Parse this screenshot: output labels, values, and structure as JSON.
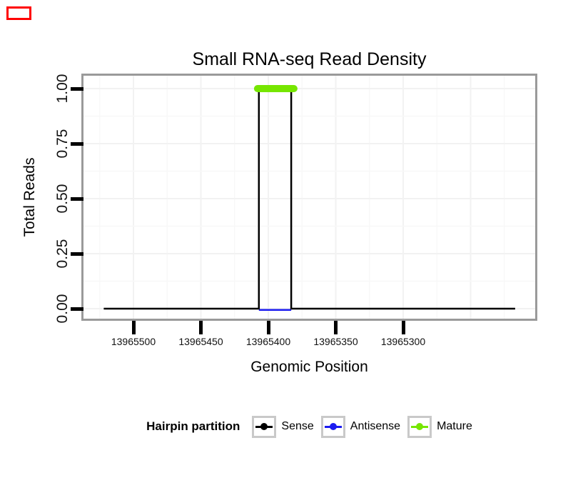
{
  "screen_marker": {
    "color": "#ff0000"
  },
  "title": "Small RNA-seq Read Density",
  "y_axis": {
    "label": "Total Reads",
    "tick_labels": [
      "1.00",
      "0.75",
      "0.50",
      "0.25",
      "0.00"
    ],
    "tick_values": [
      1.0,
      0.75,
      0.5,
      0.25,
      0.0
    ]
  },
  "x_axis": {
    "label": "Genomic Position",
    "tick_labels": [
      "13965500",
      "13965450",
      "13965400",
      "13965350",
      "13965300"
    ],
    "tick_values": [
      13965500,
      13965450,
      13965400,
      13965350,
      13965300
    ]
  },
  "legend": {
    "title": "Hairpin partition",
    "items": [
      {
        "label": "Sense",
        "color": "#000000"
      },
      {
        "label": "Antisense",
        "color": "#1c1cf0"
      },
      {
        "label": "Mature",
        "color": "#76e600"
      }
    ]
  },
  "panel": {
    "border_color": "#9a9a9a",
    "background": "#ffffff",
    "grid_major_color": "#f2f2f2",
    "grid_minor_color": "#f8f8f8"
  },
  "chart_data": {
    "type": "line",
    "subtype": "step-read-density",
    "title": "Small RNA-seq Read Density",
    "xlabel": "Genomic Position",
    "ylabel": "Total Reads",
    "x_reversed": true,
    "xlim": [
      13965537,
      13965202
    ],
    "ylim": [
      0,
      1.06
    ],
    "x_ticks": [
      13965500,
      13965450,
      13965400,
      13965350,
      13965300
    ],
    "y_ticks": [
      0,
      0.25,
      0.5,
      0.75,
      1.0
    ],
    "grid": "faint major and minor gridlines on white panel",
    "legend_position": "bottom",
    "legend_title": "Hairpin partition",
    "series": [
      {
        "name": "Sense",
        "color": "#000000",
        "line_width": 2.5,
        "points": [
          [
            13965522,
            0
          ],
          [
            13965407,
            0
          ],
          [
            13965407,
            1
          ],
          [
            13965383,
            1
          ],
          [
            13965383,
            0
          ],
          [
            13965217,
            0
          ]
        ]
      },
      {
        "name": "Antisense",
        "color": "#1c1cf0",
        "line_width": 2.5,
        "points": [
          [
            13965407,
            0
          ],
          [
            13965383,
            0
          ]
        ]
      },
      {
        "name": "Mature",
        "color": "#76e600",
        "line_width": 10,
        "linecap": "round",
        "points": [
          [
            13965408,
            1
          ],
          [
            13965381,
            1
          ]
        ]
      }
    ]
  }
}
